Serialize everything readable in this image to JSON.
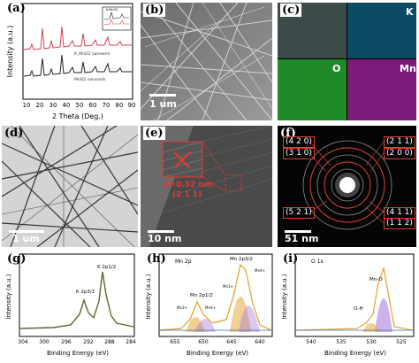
{
  "panels": {
    "a": {
      "label": "(a)",
      "xlabel": "2 Theta (Deg.)",
      "ylabel": "Intensity (a.u.)",
      "xticks": [
        "10",
        "20",
        "30",
        "40",
        "50",
        "60",
        "70",
        "80",
        "90"
      ],
      "series_red": "K_MnO2 nanowire",
      "series_black": "MnO2 nanorods",
      "inset_label": "K-MnO2"
    },
    "b": {
      "label": "(b)",
      "scale": "1 um"
    },
    "c": {
      "label": "(c)",
      "maps": [
        "K",
        "O",
        "Mn"
      ]
    },
    "d": {
      "label": "(d)",
      "scale": "1 um"
    },
    "e": {
      "label": "(e)",
      "scale": "10 nm",
      "dspacing": "d=0.32 nm",
      "plane": "(2 1 1)"
    },
    "f": {
      "label": "(f)",
      "scale": "51 nm",
      "rings_left": [
        "(4 2 0)",
        "(3 1 0)",
        "(5 2 1)"
      ],
      "rings_right": [
        "(2 1 1)",
        "(2 0 0)",
        "(4 1 1)",
        "(1 1 2)"
      ]
    },
    "g": {
      "label": "(g)",
      "title": "K 2p",
      "xlabel": "Binding Energy (eV)",
      "ylabel": "Intensity (a.u.)",
      "xticks": [
        "304",
        "300",
        "296",
        "292",
        "288",
        "284"
      ],
      "peak1": "K 2p3/2",
      "peak2": "K 2p1/2"
    },
    "h": {
      "label": "(h)",
      "title": "Mn 2p",
      "xlabel": "Binding Energy (eV)",
      "ylabel": "Intensity (a.u.)",
      "xticks": [
        "655",
        "650",
        "645",
        "640"
      ],
      "peak1": "Mn 2p1/2",
      "peak2": "Mn 2p3/2",
      "sub1": "Mn3+",
      "sub2": "Mn4+",
      "sub3": "Mn3+",
      "sub4": "Mn4+"
    },
    "i": {
      "label": "(i)",
      "title": "O 1s",
      "xlabel": "Binding Energy (eV)",
      "ylabel": "Intensity (a.u.)",
      "xticks": [
        "540",
        "535",
        "530",
        "525"
      ],
      "peak1": "Mn-O",
      "peak2": "O-H"
    }
  },
  "colors": {
    "red": "#d6414b",
    "black": "#222222",
    "olive": "#5a6b2b",
    "orange": "#e6a93a",
    "purple": "#a674d9",
    "blue": "#3a6cc4",
    "ring": "#e23b2f"
  }
}
